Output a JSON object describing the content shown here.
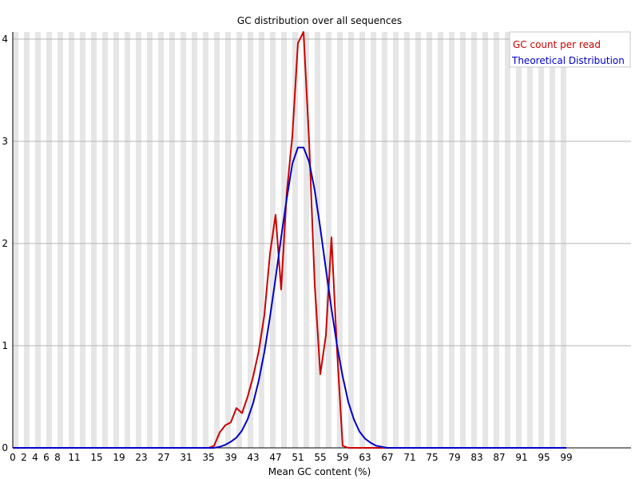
{
  "chart_data": {
    "type": "line",
    "title": "GC distribution over all sequences",
    "xlabel": "Mean GC content (%)",
    "ylabel": "",
    "xlim": [
      0,
      100
    ],
    "ylim": [
      0,
      4.07
    ],
    "y_ticks": [
      0,
      1,
      2,
      3,
      4
    ],
    "x_tick_labels": [
      "0",
      "2",
      "4",
      "6",
      "8",
      "11",
      "15",
      "19",
      "23",
      "27",
      "31",
      "35",
      "39",
      "43",
      "47",
      "51",
      "55",
      "59",
      "63",
      "67",
      "71",
      "75",
      "79",
      "83",
      "87",
      "91",
      "95",
      "99"
    ],
    "grid": "horizontal lines with alternating grey/white vertical stripes",
    "legend_position": "top-right",
    "series": [
      {
        "name": "GC count per read",
        "color": "#cc0000",
        "points": [
          [
            0,
            0
          ],
          [
            35,
            0
          ],
          [
            36,
            0.02
          ],
          [
            37,
            0.15
          ],
          [
            38,
            0.22
          ],
          [
            39,
            0.25
          ],
          [
            40,
            0.39
          ],
          [
            41,
            0.34
          ],
          [
            42,
            0.5
          ],
          [
            43,
            0.7
          ],
          [
            44,
            0.95
          ],
          [
            45,
            1.3
          ],
          [
            46,
            1.9
          ],
          [
            47,
            2.28
          ],
          [
            48,
            1.55
          ],
          [
            49,
            2.5
          ],
          [
            50,
            3.05
          ],
          [
            51,
            3.96
          ],
          [
            52,
            4.07
          ],
          [
            53,
            3.0
          ],
          [
            54,
            1.6
          ],
          [
            55,
            0.72
          ],
          [
            56,
            1.1
          ],
          [
            57,
            2.06
          ],
          [
            58,
            0.95
          ],
          [
            59,
            0.02
          ],
          [
            60,
            0
          ],
          [
            99,
            0
          ]
        ]
      },
      {
        "name": "Theoretical Distribution",
        "color": "#0000cc",
        "points": [
          [
            0,
            0
          ],
          [
            36,
            0
          ],
          [
            37,
            0.01
          ],
          [
            38,
            0.03
          ],
          [
            39,
            0.06
          ],
          [
            40,
            0.1
          ],
          [
            41,
            0.17
          ],
          [
            42,
            0.28
          ],
          [
            43,
            0.44
          ],
          [
            44,
            0.66
          ],
          [
            45,
            0.94
          ],
          [
            46,
            1.28
          ],
          [
            47,
            1.66
          ],
          [
            48,
            2.06
          ],
          [
            49,
            2.44
          ],
          [
            50,
            2.78
          ],
          [
            51,
            2.94
          ],
          [
            52,
            2.94
          ],
          [
            53,
            2.8
          ],
          [
            54,
            2.52
          ],
          [
            55,
            2.15
          ],
          [
            56,
            1.75
          ],
          [
            57,
            1.36
          ],
          [
            58,
            1.0
          ],
          [
            59,
            0.7
          ],
          [
            60,
            0.45
          ],
          [
            61,
            0.28
          ],
          [
            62,
            0.16
          ],
          [
            63,
            0.09
          ],
          [
            64,
            0.05
          ],
          [
            65,
            0.02
          ],
          [
            66,
            0.01
          ],
          [
            67,
            0
          ],
          [
            99,
            0
          ]
        ]
      }
    ]
  }
}
